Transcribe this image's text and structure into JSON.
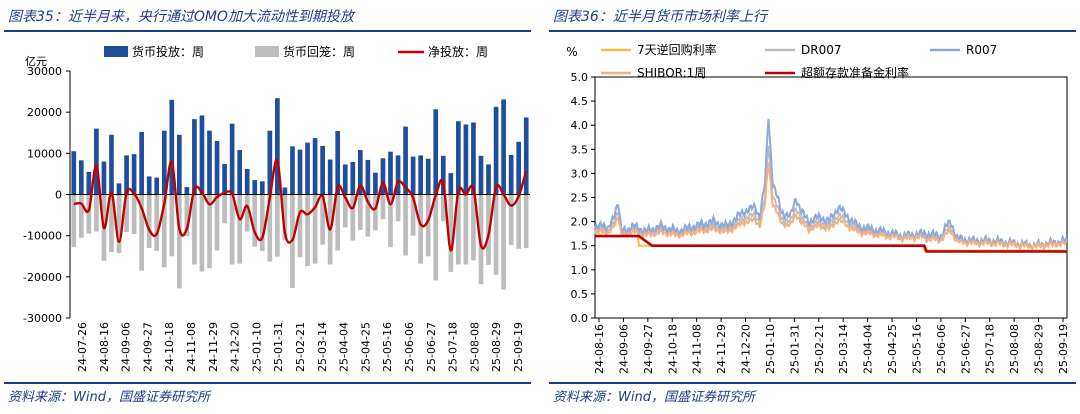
{
  "charts": [
    {
      "title": "图表35：近半月来，央行通过OMO加大流动性到期投放",
      "source": "资料来源：Wind，国盛证券研究所"
    },
    {
      "title": "图表36：近半月货币市场利率上行",
      "source": "资料来源：Wind，国盛证券研究所"
    }
  ],
  "chart_data": [
    {
      "type": "bar",
      "ylabel": "亿元",
      "ylim": [
        -30000,
        30000
      ],
      "yticks": [
        -30000,
        -20000,
        -10000,
        0,
        10000,
        20000,
        30000
      ],
      "xticks": [
        "24-07-26",
        "24-08-16",
        "24-09-06",
        "24-09-27",
        "24-10-18",
        "24-11-08",
        "24-11-29",
        "24-12-20",
        "25-01-10",
        "25-01-31",
        "25-02-21",
        "25-03-14",
        "25-04-04",
        "25-04-25",
        "25-05-16",
        "25-06-06",
        "25-06-27",
        "25-07-18",
        "25-08-08",
        "25-08-29",
        "25-09-19"
      ],
      "legend_position": "top",
      "series": [
        {
          "name": "货币投放：周",
          "color": "#1f4e9c",
          "kind": "bar",
          "values": [
            10500,
            8300,
            5500,
            16000,
            8000,
            14500,
            2700,
            9500,
            9800,
            15200,
            4400,
            4100,
            15500,
            23000,
            14500,
            1800,
            18300,
            19200,
            15500,
            13000,
            7400,
            17200,
            10800,
            6200,
            3500,
            3200,
            15500,
            23400,
            1700,
            11700,
            10900,
            12600,
            13700,
            11800,
            8500,
            15400,
            7300,
            7900,
            10800,
            8400,
            5300,
            8800,
            10400,
            9500,
            16500,
            9200,
            9500,
            8700,
            20700,
            9400,
            5200,
            17800,
            17000,
            17500,
            9400,
            7300,
            21300,
            23100,
            9600,
            12800,
            18700
          ]
        },
        {
          "name": "货币回笼：周",
          "color": "#bdbdbd",
          "kind": "bar",
          "values": [
            -12800,
            -10500,
            -9500,
            -9000,
            -16100,
            -14000,
            -14200,
            -9100,
            -9600,
            -18500,
            -13000,
            -13700,
            -17700,
            -15000,
            -22800,
            -10100,
            -17000,
            -18700,
            -17900,
            -13600,
            -7000,
            -17000,
            -16800,
            -9000,
            -12700,
            -13700,
            -16300,
            -15100,
            -11000,
            -22700,
            -15200,
            -17400,
            -16800,
            -12200,
            -17000,
            -13600,
            -8000,
            -11200,
            -8600,
            -10200,
            -8700,
            -6000,
            -12800,
            -6500,
            -14800,
            -10000,
            -16800,
            -15000,
            -20900,
            -6500,
            -18800,
            -17000,
            -17000,
            -16000,
            -21800,
            -17100,
            -19500,
            -23100,
            -12300,
            -13200,
            -13000
          ]
        },
        {
          "name": "净投放：周",
          "color": "#c00000",
          "kind": "line",
          "values": [
            -2300,
            -2200,
            -3800,
            7000,
            -8100,
            500,
            -11500,
            400,
            200,
            -3300,
            -8600,
            -9600,
            -2200,
            8000,
            -8300,
            -8300,
            1300,
            500,
            -2400,
            -600,
            400,
            200,
            -6000,
            -2800,
            -9200,
            -10500,
            -800,
            8300,
            -9300,
            -11000,
            -4300,
            -4800,
            -3100,
            -400,
            -8500,
            1800,
            -700,
            -3300,
            2200,
            -1800,
            -3400,
            2800,
            -2400,
            3000,
            1700,
            -800,
            -7300,
            -6300,
            -200,
            2900,
            -13600,
            800,
            0,
            1500,
            -12400,
            -9800,
            1800,
            0,
            -2700,
            -400,
            5700
          ]
        }
      ]
    },
    {
      "type": "line",
      "ylabel": "%",
      "ylim": [
        0.0,
        5.0
      ],
      "yticks": [
        "0.0",
        "0.5",
        "1.0",
        "1.5",
        "2.0",
        "2.5",
        "3.0",
        "3.5",
        "4.0",
        "4.5",
        "5.0"
      ],
      "xticks": [
        "24-08-16",
        "24-09-06",
        "24-09-27",
        "24-10-18",
        "24-11-08",
        "24-11-29",
        "24-12-20",
        "25-01-10",
        "25-01-31",
        "25-02-21",
        "25-03-14",
        "25-04-04",
        "25-04-25",
        "25-05-16",
        "25-06-06",
        "25-06-27",
        "25-07-18",
        "25-08-08",
        "25-08-29",
        "25-09-19"
      ],
      "legend_position": "top",
      "series": [
        {
          "name": "7天逆回购利率",
          "color": "#f5c044"
        },
        {
          "name": "DR007",
          "color": "#bdbdbd"
        },
        {
          "name": "R007",
          "color": "#8ea9db",
          "key_points": [
            [
              0,
              1.8
            ],
            [
              6,
              2.0
            ],
            [
              12,
              1.8
            ],
            [
              21,
              2.4
            ],
            [
              24,
              1.8
            ],
            [
              36,
              1.9
            ],
            [
              46,
              1.8
            ],
            [
              60,
              1.9
            ],
            [
              75,
              1.8
            ],
            [
              90,
              1.9
            ],
            [
              108,
              2.0
            ],
            [
              120,
              1.9
            ],
            [
              135,
              2.2
            ],
            [
              146,
              2.3
            ],
            [
              150,
              2.1
            ],
            [
              155,
              2.8
            ],
            [
              158,
              4.2
            ],
            [
              162,
              2.8
            ],
            [
              170,
              2.2
            ],
            [
              178,
              2.1
            ],
            [
              183,
              2.5
            ],
            [
              188,
              2.2
            ],
            [
              195,
              2.0
            ],
            [
              205,
              2.1
            ],
            [
              213,
              2.0
            ],
            [
              222,
              2.3
            ],
            [
              230,
              2.1
            ],
            [
              240,
              1.9
            ],
            [
              260,
              1.8
            ],
            [
              280,
              1.7
            ],
            [
              300,
              1.75
            ],
            [
              315,
              1.7
            ],
            [
              320,
              1.9
            ],
            [
              324,
              2.0
            ],
            [
              330,
              1.65
            ],
            [
              345,
              1.6
            ],
            [
              360,
              1.6
            ],
            [
              380,
              1.55
            ],
            [
              400,
              1.5
            ],
            [
              415,
              1.55
            ],
            [
              430,
              1.6
            ]
          ]
        },
        {
          "name": "SHIBOR:1周",
          "color": "#f4b183"
        },
        {
          "name": "超额存款准备金利率",
          "color": "#c00000",
          "key_points": [
            [
              0,
              1.7
            ],
            [
              40,
              1.7
            ],
            [
              52,
              1.5
            ],
            [
              300,
              1.5
            ],
            [
              302,
              1.38
            ],
            [
              430,
              1.38
            ]
          ]
        }
      ]
    }
  ]
}
